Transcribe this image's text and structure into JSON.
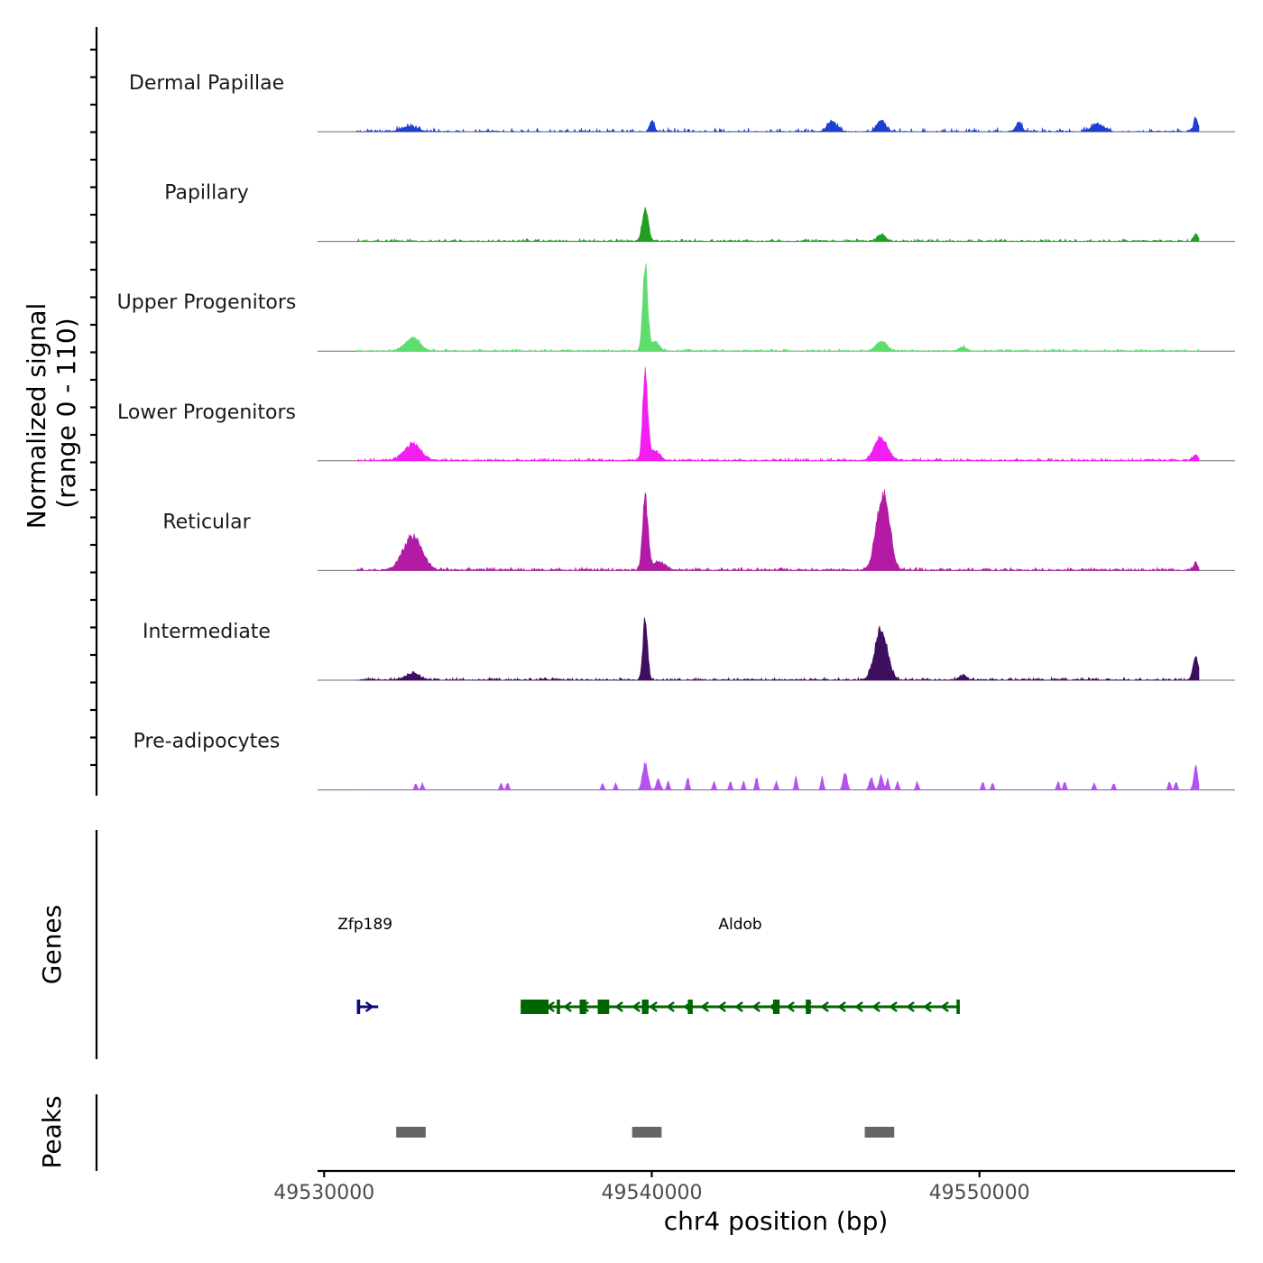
{
  "chart_data": {
    "type": "area",
    "chromosome": "chr4",
    "xlabel": "chr4 position (bp)",
    "xlim": [
      49529800,
      49557800
    ],
    "xticks": [
      49530000,
      49540000,
      49550000
    ],
    "xtick_labels": [
      "49530000",
      "49540000",
      "49550000"
    ],
    "coverage_ylabel_line1": "Normalized signal",
    "coverage_ylabel_line2": "(range 0 - 110)",
    "ylim": [
      0,
      110
    ],
    "tracks": [
      {
        "name": "Dermal Papillae",
        "color": "#1f3fd1",
        "noise": 0.045,
        "sparse": 0.55,
        "peaks": [
          [
            49532600,
            6,
            250
          ],
          [
            49540000,
            14,
            70
          ],
          [
            49545500,
            12,
            150
          ],
          [
            49547000,
            14,
            130
          ],
          [
            49551200,
            12,
            90
          ],
          [
            49553600,
            9,
            200
          ],
          [
            49556600,
            18,
            60
          ]
        ]
      },
      {
        "name": "Papillary",
        "color": "#1fa01f",
        "noise": 0.03,
        "sparse": 0.2,
        "peaks": [
          [
            49539800,
            40,
            90
          ],
          [
            49547000,
            8,
            120
          ],
          [
            49556600,
            10,
            60
          ]
        ]
      },
      {
        "name": "Upper Progenitors",
        "color": "#5fdc6e",
        "noise": 0.025,
        "sparse": 0.25,
        "peaks": [
          [
            49532700,
            16,
            220
          ],
          [
            49539800,
            104,
            75
          ],
          [
            49540100,
            12,
            120
          ],
          [
            49547000,
            12,
            160
          ],
          [
            49549500,
            5,
            120
          ]
        ]
      },
      {
        "name": "Lower Progenitors",
        "color": "#f21ef2",
        "noise": 0.03,
        "sparse": 0.05,
        "peaks": [
          [
            49532700,
            20,
            250
          ],
          [
            49539800,
            106,
            75
          ],
          [
            49540100,
            12,
            150
          ],
          [
            49547000,
            28,
            200
          ],
          [
            49556600,
            6,
            100
          ]
        ]
      },
      {
        "name": "Reticular",
        "color": "#b31aa6",
        "noise": 0.035,
        "sparse": 0.05,
        "peaks": [
          [
            49532700,
            42,
            280
          ],
          [
            49539800,
            90,
            80
          ],
          [
            49540200,
            10,
            200
          ],
          [
            49547000,
            72,
            180
          ],
          [
            49547200,
            35,
            150
          ],
          [
            49556600,
            10,
            60
          ]
        ]
      },
      {
        "name": "Intermediate",
        "color": "#3e0f5e",
        "noise": 0.03,
        "sparse": 0.05,
        "peaks": [
          [
            49532700,
            8,
            200
          ],
          [
            49539800,
            76,
            70
          ],
          [
            49547000,
            62,
            190
          ],
          [
            49549500,
            6,
            100
          ],
          [
            49556600,
            30,
            80
          ]
        ]
      },
      {
        "name": "Pre-adipocytes",
        "color": "#b452f0",
        "noise": 0.0,
        "sparse": 1.0,
        "peaks": [
          [
            49532800,
            8,
            40
          ],
          [
            49533000,
            8,
            40
          ],
          [
            49535400,
            8,
            40
          ],
          [
            49535600,
            8,
            40
          ],
          [
            49538500,
            8,
            40
          ],
          [
            49538900,
            8,
            40
          ],
          [
            49539800,
            33,
            80
          ],
          [
            49540200,
            14,
            60
          ],
          [
            49540500,
            10,
            40
          ],
          [
            49541100,
            16,
            40
          ],
          [
            49541900,
            10,
            40
          ],
          [
            49542400,
            10,
            40
          ],
          [
            49542800,
            10,
            40
          ],
          [
            49543200,
            16,
            40
          ],
          [
            49543800,
            10,
            40
          ],
          [
            49544400,
            16,
            40
          ],
          [
            49545200,
            16,
            40
          ],
          [
            49545900,
            22,
            60
          ],
          [
            49546700,
            15,
            60
          ],
          [
            49547000,
            18,
            60
          ],
          [
            49547200,
            13,
            40
          ],
          [
            49547500,
            10,
            40
          ],
          [
            49548100,
            10,
            40
          ],
          [
            49550100,
            10,
            40
          ],
          [
            49550400,
            8,
            40
          ],
          [
            49552400,
            10,
            40
          ],
          [
            49552600,
            10,
            40
          ],
          [
            49553500,
            8,
            40
          ],
          [
            49554100,
            8,
            40
          ],
          [
            49555800,
            10,
            40
          ],
          [
            49556000,
            10,
            40
          ],
          [
            49556600,
            28,
            60
          ]
        ]
      }
    ],
    "genes_ylabel": "Genes",
    "genes": [
      {
        "name": "Zfp189",
        "strand": "+",
        "start": 49531000,
        "end": 49531650,
        "color": "#0a0a80",
        "label_x": 49531250,
        "exons": [
          [
            49531000,
            49531100
          ]
        ]
      },
      {
        "name": "Aldob",
        "strand": "-",
        "start": 49536000,
        "end": 49549400,
        "color": "#006400",
        "label_x": 49542700,
        "exons": [
          [
            49536000,
            49536850
          ],
          [
            49537100,
            49537200
          ],
          [
            49537800,
            49538000
          ],
          [
            49538350,
            49538700
          ],
          [
            49539700,
            49539900
          ],
          [
            49541100,
            49541250
          ],
          [
            49543700,
            49543900
          ],
          [
            49544700,
            49544850
          ],
          [
            49549300,
            49549400
          ]
        ]
      }
    ],
    "peaks_ylabel": "Peaks",
    "peak_regions": [
      [
        49532200,
        49533100
      ],
      [
        49539400,
        49540300
      ],
      [
        49546500,
        49547400
      ]
    ]
  }
}
